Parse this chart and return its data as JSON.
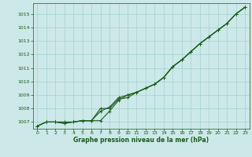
{
  "xlabel": "Graphe pression niveau de la mer (hPa)",
  "bg_color": "#cce8e8",
  "plot_bg_color": "#cce8e8",
  "grid_color": "#99cccc",
  "line_color": "#1a5c1a",
  "text_color": "#1a5c1a",
  "xlim": [
    -0.5,
    23.5
  ],
  "ylim": [
    1006.5,
    1015.8
  ],
  "xticks": [
    0,
    1,
    2,
    3,
    4,
    5,
    6,
    7,
    8,
    9,
    10,
    11,
    12,
    13,
    14,
    15,
    16,
    17,
    18,
    19,
    20,
    21,
    22,
    23
  ],
  "yticks": [
    1007,
    1008,
    1009,
    1010,
    1011,
    1012,
    1013,
    1014,
    1015
  ],
  "series1": [
    1006.7,
    1007.0,
    1007.0,
    1007.0,
    1007.0,
    1007.1,
    1007.1,
    1007.1,
    1007.8,
    1008.6,
    1009.0,
    1009.2,
    1009.5,
    1009.8,
    1010.3,
    1011.1,
    1011.6,
    1012.2,
    1012.8,
    1013.3,
    1013.8,
    1014.3,
    1015.0,
    1015.5
  ],
  "series2": [
    1006.7,
    1007.0,
    1007.0,
    1006.9,
    1007.0,
    1007.1,
    1007.1,
    1007.8,
    1008.1,
    1008.8,
    1009.0,
    1009.2,
    1009.5,
    1009.8,
    1010.3,
    1011.1,
    1011.6,
    1012.2,
    1012.8,
    1013.3,
    1013.8,
    1014.3,
    1015.0,
    1015.5
  ],
  "series3": [
    1006.7,
    1007.0,
    1007.0,
    1006.9,
    1007.0,
    1007.1,
    1007.1,
    1008.0,
    1008.0,
    1008.7,
    1008.8,
    1009.2,
    1009.5,
    1009.8,
    1010.3,
    1011.1,
    1011.6,
    1012.2,
    1012.8,
    1013.3,
    1013.8,
    1014.3,
    1015.0,
    1015.5
  ],
  "marker": "+",
  "marker_size": 3,
  "line_width": 0.8,
  "xlabel_fontsize": 5.5,
  "tick_fontsize": 4.5
}
